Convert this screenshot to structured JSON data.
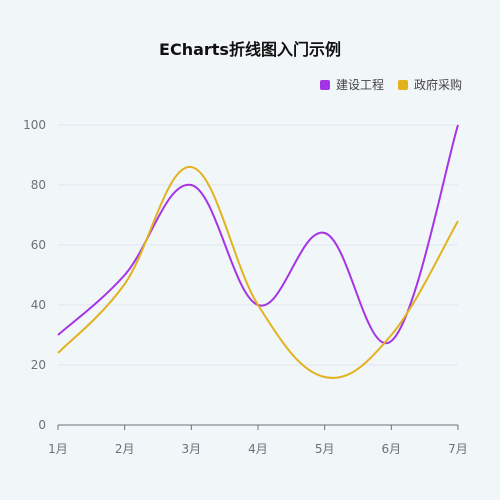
{
  "chart_data": {
    "type": "line",
    "title": "ECharts折线图入门示例",
    "categories": [
      "1月",
      "2月",
      "3月",
      "4月",
      "5月",
      "6月",
      "7月"
    ],
    "ylim": [
      0,
      100
    ],
    "yticks": [
      0,
      20,
      40,
      60,
      80,
      100
    ],
    "grid": true,
    "smooth": true,
    "legend_position": "top-right",
    "series": [
      {
        "name": "建设工程",
        "color": "#a534e6",
        "values": [
          30,
          50,
          80,
          40,
          64,
          28,
          100
        ]
      },
      {
        "name": "政府采购",
        "color": "#e2b21f",
        "values": [
          24,
          47,
          86,
          40,
          16,
          30,
          68
        ]
      }
    ]
  }
}
